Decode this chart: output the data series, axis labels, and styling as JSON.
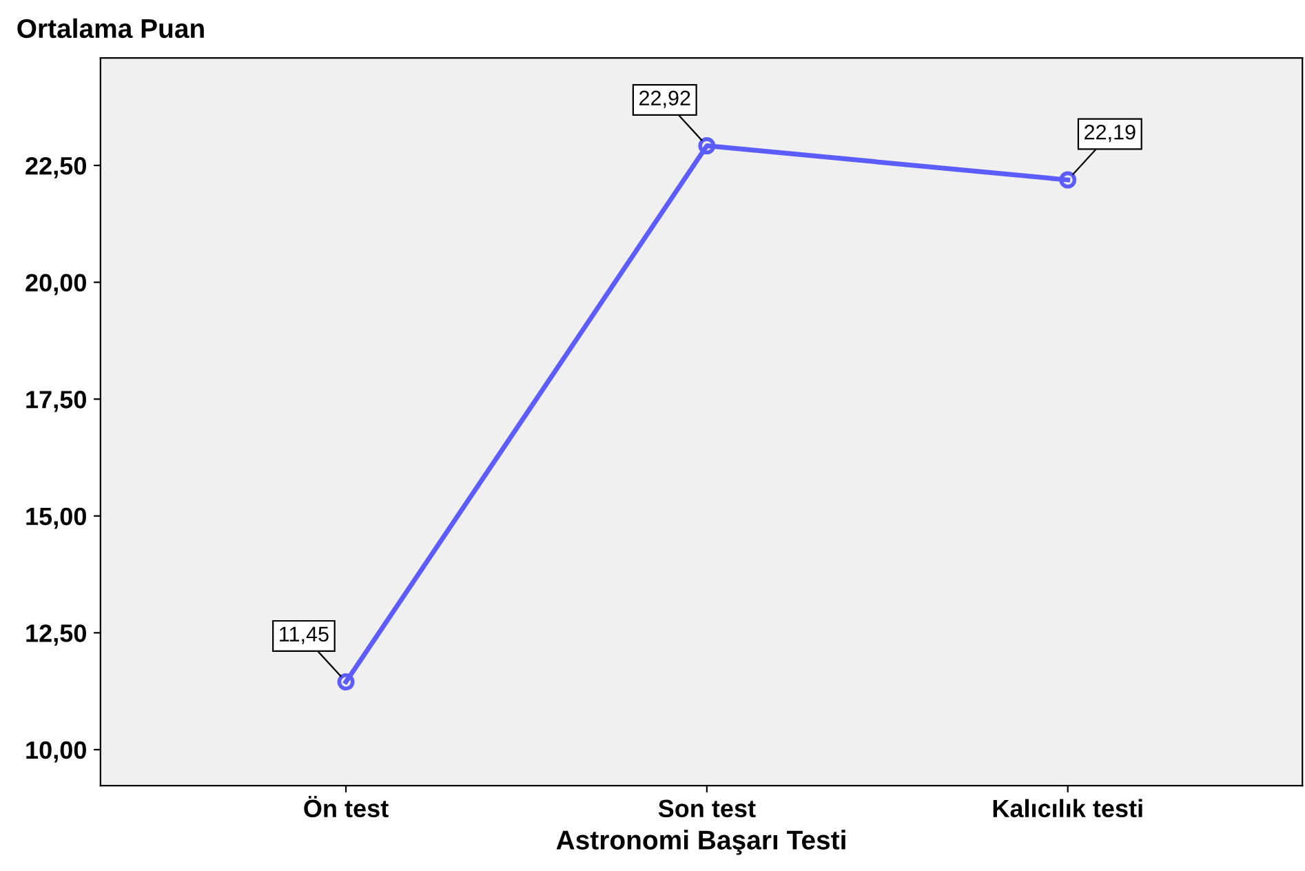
{
  "chart_data": {
    "type": "line",
    "ylabel": "Ortalama Puan",
    "xlabel": "Astronomi Başarı Testi",
    "categories": [
      "Ön test",
      "Son test",
      "Kalıcılık testi"
    ],
    "series": [
      {
        "color": "#5c5cff",
        "values": [
          11.45,
          22.92,
          22.19
        ],
        "value_labels": [
          "11,45",
          "22,92",
          "22,19"
        ]
      }
    ],
    "ylim": [
      9.23,
      24.8
    ],
    "yticks": [
      {
        "value": 10,
        "label": "10,00"
      },
      {
        "value": 12.5,
        "label": "12,50"
      },
      {
        "value": 15,
        "label": "15,00"
      },
      {
        "value": 17.5,
        "label": "17,50"
      },
      {
        "value": 20,
        "label": "20,00"
      },
      {
        "value": 22.5,
        "label": "22,50"
      }
    ],
    "marker": "circle",
    "line_style": "solid",
    "grid": false,
    "legend": false
  }
}
